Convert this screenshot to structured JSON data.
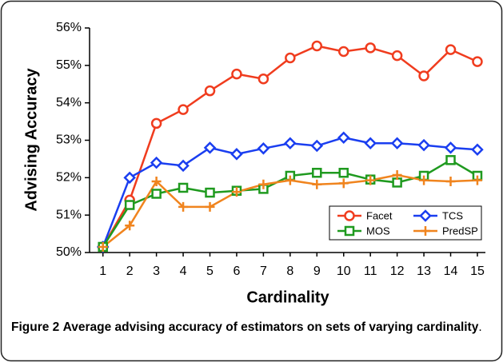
{
  "chart_data": {
    "type": "line",
    "x_label": "Cardinality",
    "y_label": "Advising Accuracy",
    "x": [
      1,
      2,
      3,
      4,
      5,
      6,
      7,
      8,
      9,
      10,
      11,
      12,
      13,
      14,
      15
    ],
    "xlim": [
      0.5,
      15.3
    ],
    "xticks": [
      1,
      2,
      3,
      4,
      5,
      6,
      7,
      8,
      9,
      10,
      11,
      12,
      13,
      14,
      15
    ],
    "ylim": [
      50,
      56
    ],
    "yticks": [
      {
        "value": 50,
        "label": "50%"
      },
      {
        "value": 51,
        "label": "51%"
      },
      {
        "value": 52,
        "label": "52%"
      },
      {
        "value": 53,
        "label": "53%"
      },
      {
        "value": 54,
        "label": "54%"
      },
      {
        "value": 55,
        "label": "55%"
      },
      {
        "value": 56,
        "label": "56%"
      }
    ],
    "grid": false,
    "legend": "lower right",
    "series": [
      {
        "name": "Facet",
        "color": "#f03c1e",
        "marker": "circle",
        "values": [
          50.15,
          51.4,
          53.45,
          53.82,
          54.32,
          54.77,
          54.64,
          55.2,
          55.52,
          55.37,
          55.47,
          55.26,
          54.72,
          55.42,
          55.1
        ]
      },
      {
        "name": "TCS",
        "color": "#1a3ef0",
        "marker": "diamond",
        "values": [
          50.15,
          52.0,
          52.4,
          52.32,
          52.8,
          52.63,
          52.78,
          52.92,
          52.85,
          53.07,
          52.92,
          52.92,
          52.87,
          52.8,
          52.75
        ]
      },
      {
        "name": "MOS",
        "color": "#1f9a1f",
        "marker": "square",
        "values": [
          50.15,
          51.27,
          51.57,
          51.73,
          51.6,
          51.65,
          51.7,
          52.05,
          52.13,
          52.13,
          51.95,
          51.87,
          52.05,
          52.47,
          52.05
        ]
      },
      {
        "name": "PredSP",
        "color": "#f0841e",
        "marker": "plus",
        "values": [
          50.15,
          50.72,
          51.9,
          51.22,
          51.22,
          51.62,
          51.82,
          51.93,
          51.82,
          51.85,
          51.93,
          52.07,
          51.93,
          51.9,
          51.93
        ]
      }
    ]
  },
  "caption": {
    "label": "Figure 2",
    "text": "Average advising accuracy of estimators on sets of varying cardinality",
    "end": "."
  }
}
